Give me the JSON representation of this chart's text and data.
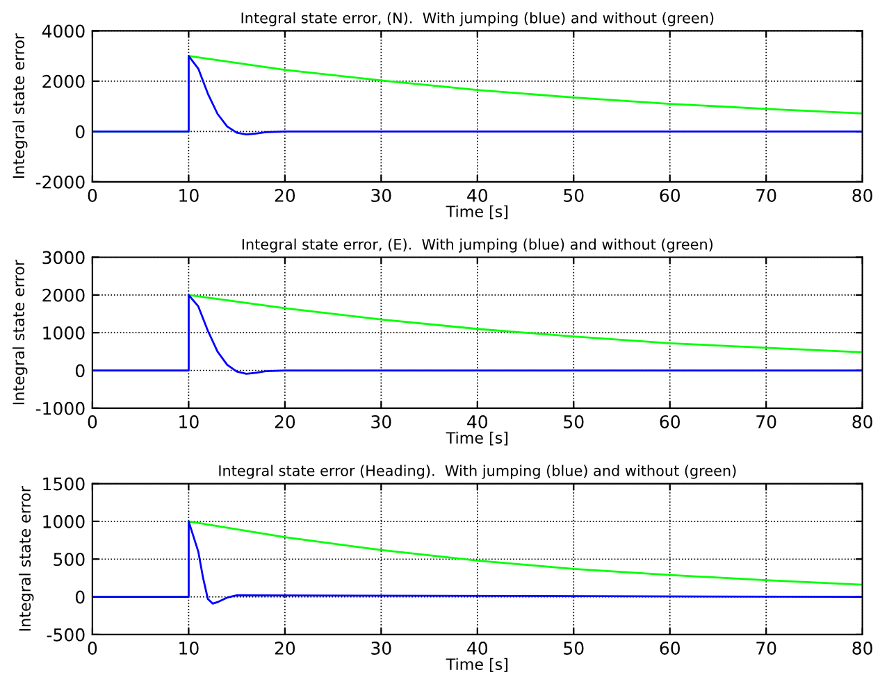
{
  "chart_data": [
    {
      "type": "line",
      "title": "Integral state error, (N).  With jumping (blue) and without (green)",
      "xlabel": "Time [s]",
      "ylabel": "Integral state error",
      "xlim": [
        0,
        80
      ],
      "ylim": [
        -2000,
        4000
      ],
      "xticks": [
        0,
        10,
        20,
        30,
        40,
        50,
        60,
        70,
        80
      ],
      "yticks": [
        -2000,
        0,
        2000,
        4000
      ],
      "grid": true,
      "line_style": "solid",
      "series": [
        {
          "color": "#00ff00",
          "x": [
            0,
            10,
            10,
            20,
            30,
            40,
            50,
            60,
            70,
            80
          ],
          "values": [
            0,
            0,
            3000,
            2450,
            2030,
            1650,
            1350,
            1100,
            900,
            720
          ]
        },
        {
          "color": "#0000ff",
          "x": [
            0,
            10,
            10,
            11,
            12,
            13,
            14,
            15,
            16,
            17,
            18,
            20,
            80
          ],
          "values": [
            0,
            0,
            3000,
            2500,
            1500,
            700,
            200,
            -50,
            -120,
            -80,
            -30,
            0,
            0
          ]
        }
      ]
    },
    {
      "type": "line",
      "title": "Integral state error, (E).  With jumping (blue) and without (green)",
      "xlabel": "Time [s]",
      "ylabel": "Integral state error",
      "xlim": [
        0,
        80
      ],
      "ylim": [
        -1000,
        3000
      ],
      "xticks": [
        0,
        10,
        20,
        30,
        40,
        50,
        60,
        70,
        80
      ],
      "yticks": [
        -1000,
        0,
        1000,
        2000,
        3000
      ],
      "grid": true,
      "line_style": "solid",
      "series": [
        {
          "color": "#00ff00",
          "x": [
            0,
            10,
            10,
            20,
            30,
            40,
            50,
            60,
            70,
            80
          ],
          "values": [
            0,
            0,
            2000,
            1650,
            1350,
            1100,
            900,
            720,
            600,
            480
          ]
        },
        {
          "color": "#0000ff",
          "x": [
            0,
            10,
            10,
            11,
            12,
            13,
            14,
            15,
            16,
            17,
            18,
            20,
            80
          ],
          "values": [
            0,
            0,
            2000,
            1700,
            1050,
            500,
            150,
            -30,
            -90,
            -60,
            -20,
            0,
            0
          ]
        }
      ]
    },
    {
      "type": "line",
      "title": "Integral state error (Heading).  With jumping (blue) and without (green)",
      "xlabel": "Time [s]",
      "ylabel": "Integral state error",
      "xlim": [
        0,
        80
      ],
      "ylim": [
        -500,
        1500
      ],
      "xticks": [
        0,
        10,
        20,
        30,
        40,
        50,
        60,
        70,
        80
      ],
      "yticks": [
        -500,
        0,
        500,
        1000,
        1500
      ],
      "grid": true,
      "line_style": "solid",
      "series": [
        {
          "color": "#00ff00",
          "x": [
            0,
            10,
            10,
            20,
            30,
            40,
            50,
            60,
            70,
            80
          ],
          "values": [
            0,
            0,
            1000,
            790,
            620,
            480,
            370,
            290,
            220,
            160
          ]
        },
        {
          "color": "#0000ff",
          "x": [
            0,
            10,
            10,
            11,
            11.5,
            12,
            12.5,
            13,
            14,
            15,
            80
          ],
          "values": [
            0,
            0,
            1000,
            600,
            250,
            -30,
            -90,
            -70,
            -10,
            20,
            0
          ]
        }
      ]
    }
  ]
}
